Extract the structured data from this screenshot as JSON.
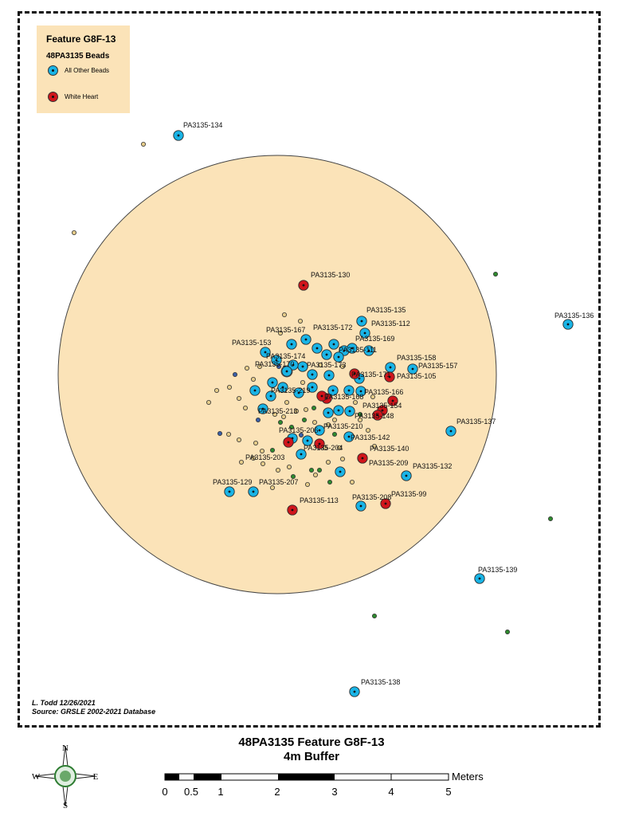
{
  "legend": {
    "title": "Feature G8F-13",
    "subtitle": "48PA3135 Beads",
    "items": [
      {
        "label": "All Other Beads",
        "color": "#19b4e6"
      },
      {
        "label": "White Heart",
        "color": "#d0151b"
      }
    ]
  },
  "title": {
    "line1": "48PA3135 Feature G8F-13",
    "line2": "4m Buffer"
  },
  "credits": {
    "author": "L. Todd 12/26/2021",
    "source": "Source: GRSLE 2002-2021 Database"
  },
  "compass": {
    "n": "N",
    "s": "S",
    "e": "E",
    "w": "W"
  },
  "scale": {
    "units": "Meters",
    "ticks": [
      "0",
      "0.5",
      "1",
      "2",
      "3",
      "4",
      "5"
    ]
  },
  "colors": {
    "buffer_fill": "#fbe3b8",
    "blue_bead": "#19b4e6",
    "red_bead": "#d0151b",
    "small_tan": "#e5cc8a",
    "small_green": "#2e8b2e",
    "small_navy": "#3a5fa8"
  },
  "labels": [
    "PA3135-134",
    "PA3135-130",
    "PA3135-135",
    "PA3135-112",
    "PA3135-167",
    "PA3135-172",
    "PA3135-169",
    "PA3135-153",
    "PA3135-111",
    "PA3135-174",
    "PA3135-158",
    "PA3135-157",
    "PA3135-170",
    "PA3135-105",
    "PA3135-173",
    "PA3135-171",
    "PA3135-166",
    "PA3135-154",
    "PA3135-148",
    "PA3135-168",
    "PA3135-219",
    "PA3135-210",
    "PA3135-213",
    "PA3135-206",
    "PA3135-142",
    "PA3135-204",
    "PA3135-140",
    "PA3135-203",
    "PA3135-209",
    "PA3135-132",
    "PA3135-129",
    "PA3135-207",
    "PA3135-113",
    "PA3135-208",
    "PA3135-99",
    "PA3135-137",
    "PA3135-136",
    "PA3135-139",
    "PA3135-138"
  ]
}
